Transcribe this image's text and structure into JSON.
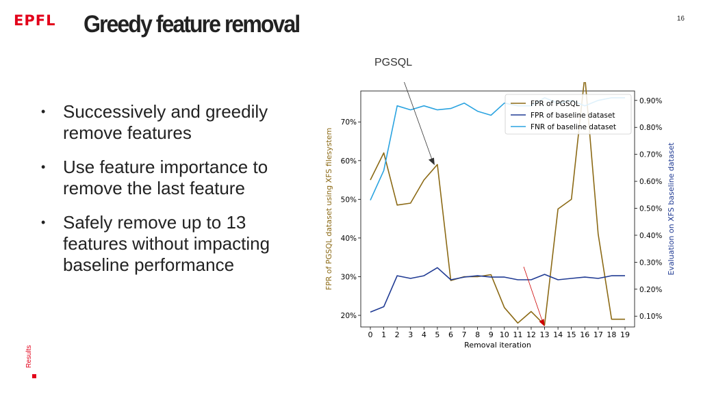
{
  "header": {
    "logo_text": "EPFL",
    "title": "Greedy feature removal",
    "page_number": "16"
  },
  "bullets": [
    "Successively and greedily remove features",
    "Use feature importance to remove the last feature",
    "Safely remove up to 13 features without impacting baseline performance"
  ],
  "side_label": "Results",
  "annotation": {
    "label": "PGSQL"
  },
  "colors": {
    "brand": "#e2001a",
    "fpr_pgsql": "#8b6914",
    "fpr_baseline": "#1f3a93",
    "fnr_baseline": "#2aa3e0",
    "arrow_red": "#cc0000"
  },
  "chart_data": {
    "type": "line",
    "x": [
      0,
      1,
      2,
      3,
      4,
      5,
      6,
      7,
      8,
      9,
      10,
      11,
      12,
      13,
      14,
      15,
      16,
      17,
      18,
      19
    ],
    "xlabel": "Removal iteration",
    "ylabel_left": "FPR of PGSQL dataset using XFS filesystem",
    "ylabel_right": "Evaluation on XFS baseline dataset",
    "y_left_ticks": [
      "20%",
      "30%",
      "40%",
      "50%",
      "60%",
      "70%"
    ],
    "y_left_lim": [
      17,
      78
    ],
    "y_right_ticks": [
      "0.10%",
      "0.20%",
      "0.30%",
      "0.40%",
      "0.50%",
      "0.60%",
      "0.70%",
      "0.80%",
      "0.90%"
    ],
    "y_right_lim": [
      0.06,
      0.935
    ],
    "legend_position": "top-right",
    "series": [
      {
        "name": "FPR of PGSQL",
        "axis": "left",
        "values": [
          55,
          62,
          48.5,
          49,
          55,
          59,
          29,
          30,
          30,
          30.5,
          22,
          18,
          21,
          17.5,
          47.5,
          50,
          82,
          41,
          19,
          19
        ]
      },
      {
        "name": "FPR of baseline dataset",
        "axis": "right",
        "values": [
          0.115,
          0.135,
          0.25,
          0.24,
          0.25,
          0.28,
          0.235,
          0.245,
          0.25,
          0.245,
          0.245,
          0.235,
          0.235,
          0.255,
          0.235,
          0.24,
          0.245,
          0.24,
          0.25,
          0.25
        ]
      },
      {
        "name": "FNR of baseline dataset",
        "axis": "right",
        "values": [
          0.53,
          0.64,
          0.88,
          0.865,
          0.88,
          0.865,
          0.87,
          0.89,
          0.86,
          0.845,
          0.89,
          0.88,
          0.88,
          0.91,
          0.89,
          0.9,
          0.88,
          0.9,
          0.91,
          0.91
        ]
      }
    ]
  }
}
